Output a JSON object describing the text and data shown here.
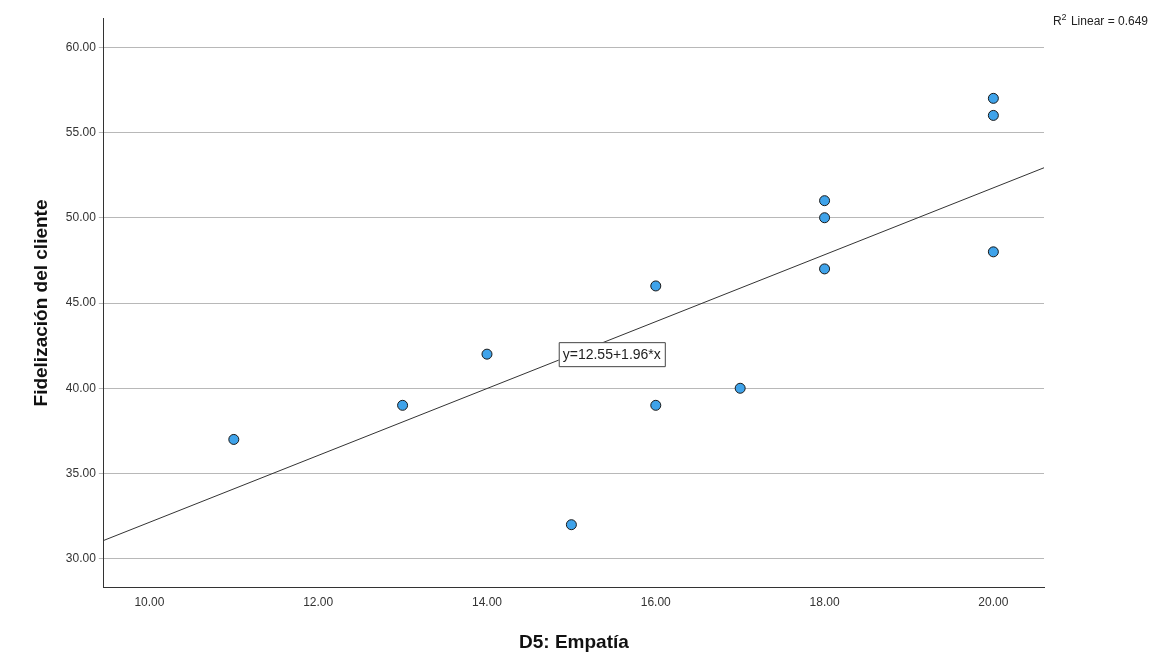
{
  "chart_data": {
    "type": "scatter",
    "xlabel": "D5: Empatía",
    "ylabel": "Fidelización del cliente",
    "xlim": [
      9.46,
      20.6
    ],
    "ylim": [
      28.3,
      61.7
    ],
    "xticks": [
      {
        "value": 10,
        "label": "10.00"
      },
      {
        "value": 12,
        "label": "12.00"
      },
      {
        "value": 14,
        "label": "14.00"
      },
      {
        "value": 16,
        "label": "16.00"
      },
      {
        "value": 18,
        "label": "18.00"
      },
      {
        "value": 20,
        "label": "20.00"
      }
    ],
    "yticks": [
      {
        "value": 30,
        "label": "30.00"
      },
      {
        "value": 35,
        "label": "35.00"
      },
      {
        "value": 40,
        "label": "40.00"
      },
      {
        "value": 45,
        "label": "45.00"
      },
      {
        "value": 50,
        "label": "50.00"
      },
      {
        "value": 55,
        "label": "55.00"
      },
      {
        "value": 60,
        "label": "60.00"
      }
    ],
    "grid": "y",
    "legend": false,
    "series": [
      {
        "type": "scatter",
        "marker": "circle",
        "color": "#3fa3ea",
        "x": [
          11,
          13,
          14,
          15,
          16,
          16,
          17,
          18,
          18,
          18,
          20,
          20,
          20
        ],
        "values": [
          37,
          39,
          42,
          32,
          46,
          39,
          40,
          51,
          50,
          47,
          57,
          56,
          48
        ]
      },
      {
        "type": "line",
        "marker": "none",
        "color": "#333333",
        "x": [
          9.46,
          20.6
        ],
        "values": [
          31.08,
          52.93
        ]
      }
    ],
    "annotations": [
      {
        "text": "y=12.55+1.96*x",
        "x": 14.85,
        "y": 42
      },
      "R$^{2}$ Linear = 0.649"
    ]
  }
}
